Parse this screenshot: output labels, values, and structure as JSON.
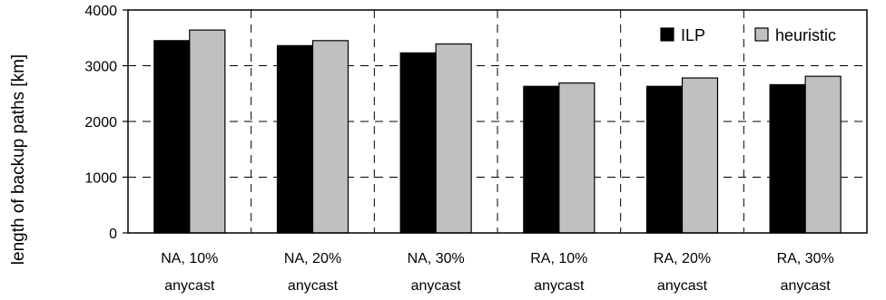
{
  "chart_data": {
    "type": "bar",
    "title": "",
    "xlabel": "",
    "ylabel": "length of backup paths [km]",
    "categories": [
      [
        "NA, 10%",
        "anycast"
      ],
      [
        "NA, 20%",
        "anycast"
      ],
      [
        "NA, 30%",
        "anycast"
      ],
      [
        "RA, 10%",
        "anycast"
      ],
      [
        "RA, 20%",
        "anycast"
      ],
      [
        "RA, 30%",
        "anycast"
      ]
    ],
    "series": [
      {
        "name": "ILP",
        "color": "#000000",
        "values": [
          3450,
          3360,
          3230,
          2630,
          2630,
          2660
        ]
      },
      {
        "name": "heuristic",
        "color": "#c0c0c0",
        "values": [
          3640,
          3450,
          3390,
          2690,
          2780,
          2810
        ]
      }
    ],
    "ylim": [
      0,
      4000
    ],
    "yticks": [
      0,
      1000,
      2000,
      3000,
      4000
    ],
    "grid": "dashed",
    "legend_position": "top-right"
  }
}
